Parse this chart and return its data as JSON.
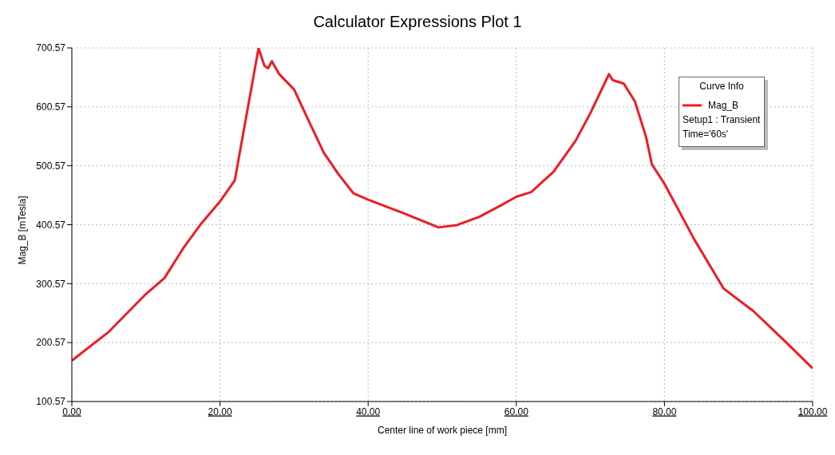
{
  "chart_data": {
    "type": "line",
    "title": "Calculator Expressions Plot 1",
    "xlabel": "Center line of work piece [mm]",
    "ylabel": "Mag_B [mTesla]",
    "legend_title": "Curve Info",
    "annotations": [
      "Setup1 : Transient",
      "Time='60s'"
    ],
    "x": [
      0,
      5,
      10,
      12.5,
      15,
      17.5,
      20,
      22,
      25.2,
      26,
      26.5,
      27,
      28,
      30,
      32,
      34,
      36,
      38,
      40,
      45,
      49.5,
      52,
      55,
      58,
      60,
      62,
      65,
      68,
      70,
      72.5,
      73,
      74.5,
      76,
      77.5,
      78.3,
      80,
      84,
      88,
      92,
      96,
      100
    ],
    "series": [
      {
        "name": "Mag_B",
        "color": "#ee1c25",
        "values": [
          170,
          219,
          283,
          310,
          360,
          403,
          440,
          476,
          700,
          670,
          666,
          678,
          656,
          630,
          576,
          523,
          486,
          454,
          443,
          419,
          396,
          400,
          414,
          434,
          448,
          456,
          490,
          543,
          590,
          656,
          646,
          640,
          610,
          550,
          503,
          470,
          376,
          292,
          254,
          206,
          157
        ]
      }
    ],
    "xlim": [
      0,
      100
    ],
    "xticks": [
      {
        "value": 0,
        "label": "0.00"
      },
      {
        "value": 20,
        "label": "20.00"
      },
      {
        "value": 40,
        "label": "40.00"
      },
      {
        "value": 60,
        "label": "60.00"
      },
      {
        "value": 80,
        "label": "80.00"
      },
      {
        "value": 100,
        "label": "100.00"
      }
    ],
    "ylim": [
      100.57,
      700.57
    ],
    "yticks": [
      100.57,
      200.57,
      300.57,
      400.57,
      500.57,
      600.57,
      700.57
    ],
    "grid": true,
    "legend": "top right"
  }
}
